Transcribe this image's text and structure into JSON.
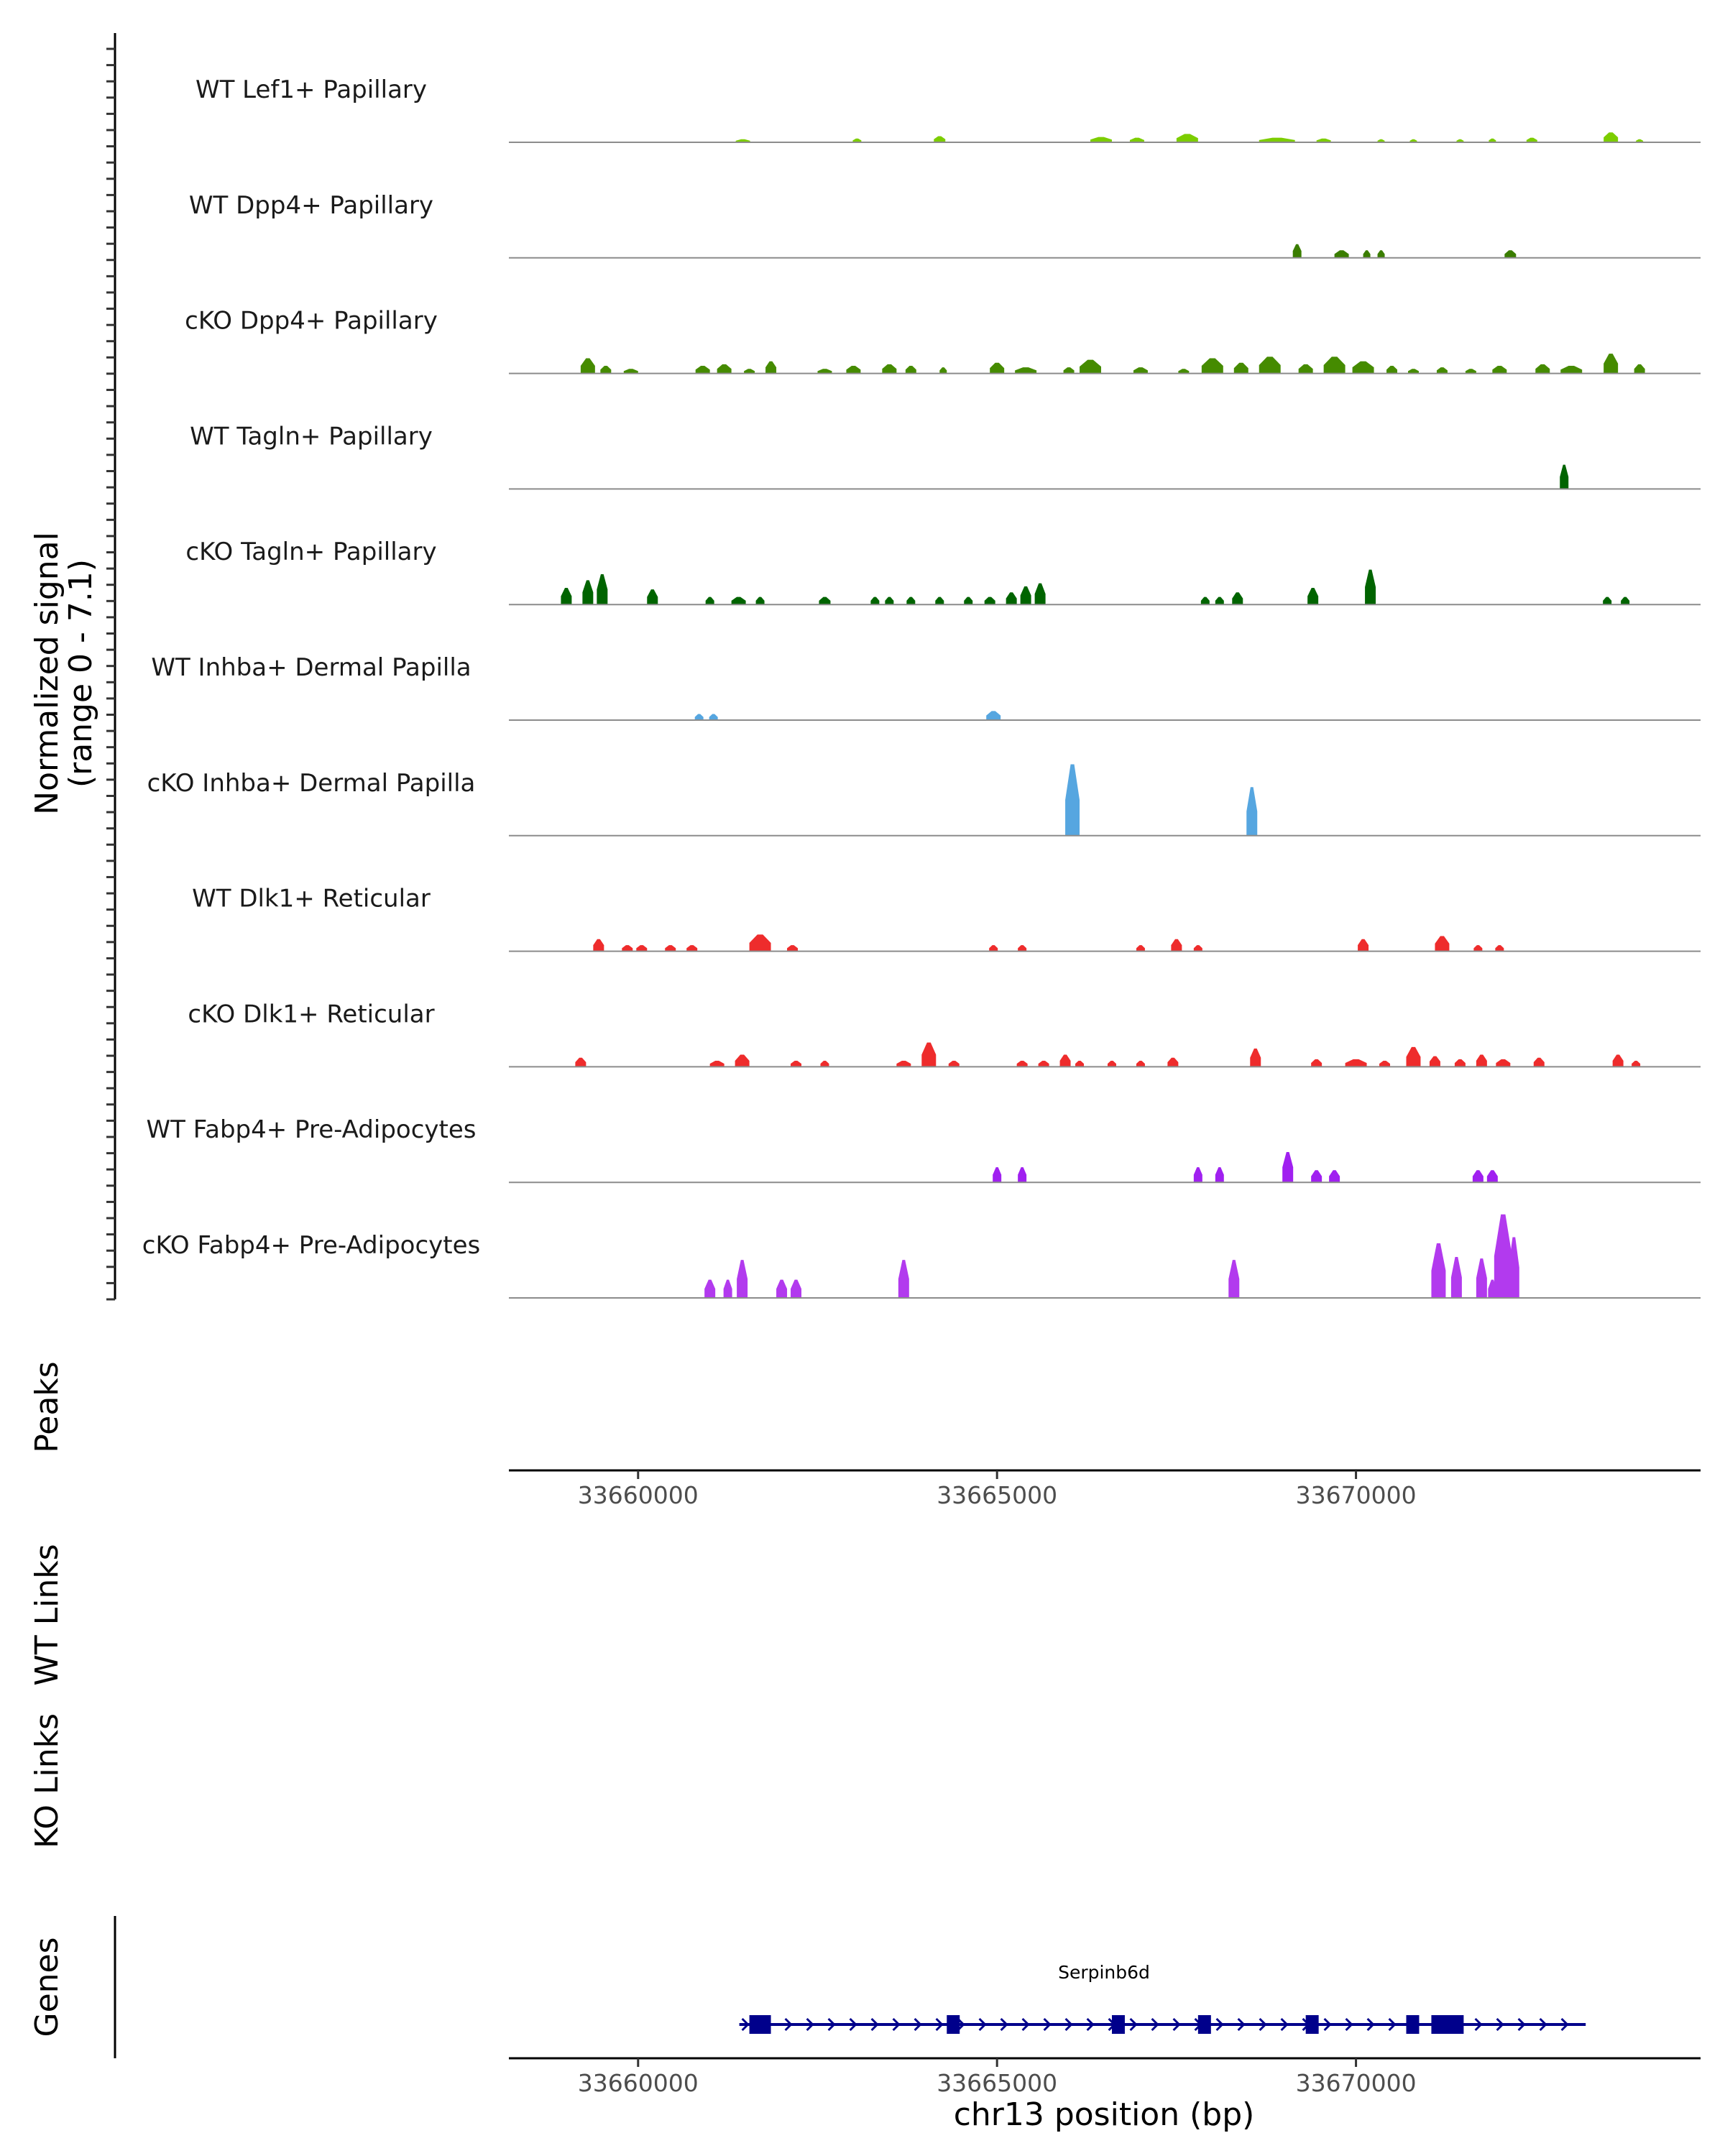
{
  "chart_data": {
    "type": "area",
    "title": "",
    "y_axis_label": "Normalized signal",
    "y_axis_range_label": "(range 0 - 7.1)",
    "ylim": [
      0,
      7.1
    ],
    "xlim": [
      33658200,
      33674800
    ],
    "x_ticks": [
      {
        "value": 33660000,
        "label": "33660000"
      },
      {
        "value": 33665000,
        "label": "33665000"
      },
      {
        "value": 33670000,
        "label": "33670000"
      }
    ],
    "xlabel": "chr13 position (bp)",
    "tracks": [
      {
        "name": "WT Lef1+ Papillary",
        "color": "#7CCD00",
        "peaks": [
          [
            33661460,
            0.2,
            200
          ],
          [
            33663050,
            0.25,
            120
          ],
          [
            33664200,
            0.4,
            160
          ],
          [
            33666450,
            0.35,
            300
          ],
          [
            33666950,
            0.3,
            200
          ],
          [
            33667650,
            0.55,
            300
          ],
          [
            33668900,
            0.3,
            500
          ],
          [
            33669550,
            0.25,
            200
          ],
          [
            33670350,
            0.2,
            100
          ],
          [
            33670800,
            0.2,
            100
          ],
          [
            33671450,
            0.2,
            100
          ],
          [
            33671900,
            0.25,
            100
          ],
          [
            33672450,
            0.3,
            150
          ],
          [
            33673550,
            0.65,
            200
          ],
          [
            33673950,
            0.2,
            100
          ]
        ]
      },
      {
        "name": "WT Dpp4+ Papillary",
        "color": "#3A7D00",
        "peaks": [
          [
            33669180,
            0.9,
            120
          ],
          [
            33669800,
            0.5,
            200
          ],
          [
            33670150,
            0.5,
            100
          ],
          [
            33670350,
            0.5,
            100
          ],
          [
            33672150,
            0.5,
            160
          ]
        ]
      },
      {
        "name": "cKO Dpp4+ Papillary",
        "color": "#458B00",
        "peaks": [
          [
            33659300,
            1.0,
            200
          ],
          [
            33659550,
            0.5,
            150
          ],
          [
            33659900,
            0.3,
            200
          ],
          [
            33660900,
            0.5,
            200
          ],
          [
            33661200,
            0.6,
            200
          ],
          [
            33661550,
            0.3,
            150
          ],
          [
            33661850,
            0.8,
            150
          ],
          [
            33662600,
            0.3,
            200
          ],
          [
            33663000,
            0.5,
            200
          ],
          [
            33663500,
            0.6,
            200
          ],
          [
            33663800,
            0.5,
            150
          ],
          [
            33664250,
            0.4,
            100
          ],
          [
            33665000,
            0.7,
            200
          ],
          [
            33665400,
            0.4,
            300
          ],
          [
            33666000,
            0.4,
            150
          ],
          [
            33666300,
            0.9,
            300
          ],
          [
            33667000,
            0.4,
            200
          ],
          [
            33667600,
            0.3,
            150
          ],
          [
            33668000,
            1.0,
            300
          ],
          [
            33668400,
            0.7,
            200
          ],
          [
            33668800,
            1.1,
            300
          ],
          [
            33669300,
            0.6,
            200
          ],
          [
            33669700,
            1.1,
            300
          ],
          [
            33670100,
            0.8,
            300
          ],
          [
            33670500,
            0.5,
            150
          ],
          [
            33670800,
            0.3,
            150
          ],
          [
            33671200,
            0.4,
            150
          ],
          [
            33671600,
            0.3,
            150
          ],
          [
            33672000,
            0.5,
            200
          ],
          [
            33672600,
            0.6,
            200
          ],
          [
            33673000,
            0.5,
            300
          ],
          [
            33673550,
            1.3,
            200
          ],
          [
            33673950,
            0.6,
            150
          ]
        ]
      },
      {
        "name": "WT Tagln+ Papillary",
        "color": "#006400",
        "peaks": [
          [
            33672900,
            1.6,
            120
          ]
        ]
      },
      {
        "name": "cKO Tagln+ Papillary",
        "color": "#006400",
        "peaks": [
          [
            33659000,
            1.1,
            150
          ],
          [
            33659300,
            1.6,
            150
          ],
          [
            33659500,
            2.0,
            150
          ],
          [
            33660200,
            1.0,
            150
          ],
          [
            33661000,
            0.5,
            120
          ],
          [
            33661400,
            0.5,
            200
          ],
          [
            33661700,
            0.5,
            120
          ],
          [
            33662600,
            0.5,
            160
          ],
          [
            33663300,
            0.5,
            120
          ],
          [
            33663500,
            0.5,
            120
          ],
          [
            33663800,
            0.5,
            120
          ],
          [
            33664200,
            0.5,
            120
          ],
          [
            33664600,
            0.5,
            120
          ],
          [
            33664900,
            0.5,
            150
          ],
          [
            33665200,
            0.8,
            150
          ],
          [
            33665400,
            1.2,
            150
          ],
          [
            33665600,
            1.4,
            150
          ],
          [
            33667900,
            0.5,
            120
          ],
          [
            33668100,
            0.5,
            120
          ],
          [
            33668350,
            0.8,
            150
          ],
          [
            33669400,
            1.1,
            150
          ],
          [
            33670200,
            2.3,
            150
          ],
          [
            33673500,
            0.5,
            120
          ],
          [
            33673750,
            0.5,
            120
          ]
        ]
      },
      {
        "name": "WT Inhba+ Dermal Papilla",
        "color": "#56A6E0",
        "peaks": [
          [
            33660850,
            0.4,
            120
          ],
          [
            33661050,
            0.4,
            120
          ],
          [
            33664950,
            0.6,
            200
          ]
        ]
      },
      {
        "name": "cKO Inhba+ Dermal Papilla",
        "color": "#56A6E0",
        "peaks": [
          [
            33666050,
            4.7,
            200
          ],
          [
            33668550,
            3.2,
            150
          ]
        ]
      },
      {
        "name": "WT Dlk1+ Reticular",
        "color": "#EE2C2C",
        "peaks": [
          [
            33659450,
            0.8,
            150
          ],
          [
            33659850,
            0.4,
            150
          ],
          [
            33660050,
            0.4,
            150
          ],
          [
            33660450,
            0.4,
            150
          ],
          [
            33660750,
            0.4,
            150
          ],
          [
            33661700,
            1.1,
            300
          ],
          [
            33662150,
            0.4,
            150
          ],
          [
            33664950,
            0.4,
            120
          ],
          [
            33665350,
            0.4,
            120
          ],
          [
            33667000,
            0.4,
            120
          ],
          [
            33667500,
            0.8,
            150
          ],
          [
            33667800,
            0.4,
            120
          ],
          [
            33670100,
            0.8,
            150
          ],
          [
            33671200,
            1.0,
            200
          ],
          [
            33671700,
            0.4,
            120
          ],
          [
            33672000,
            0.4,
            120
          ]
        ]
      },
      {
        "name": "cKO Dlk1+ Reticular",
        "color": "#EE2C2C",
        "peaks": [
          [
            33659200,
            0.6,
            150
          ],
          [
            33661100,
            0.4,
            200
          ],
          [
            33661450,
            0.8,
            200
          ],
          [
            33662200,
            0.4,
            150
          ],
          [
            33662600,
            0.4,
            120
          ],
          [
            33663700,
            0.4,
            200
          ],
          [
            33664050,
            1.6,
            200
          ],
          [
            33664400,
            0.4,
            150
          ],
          [
            33665350,
            0.4,
            150
          ],
          [
            33665650,
            0.4,
            150
          ],
          [
            33665950,
            0.8,
            150
          ],
          [
            33666150,
            0.4,
            120
          ],
          [
            33666600,
            0.4,
            120
          ],
          [
            33667000,
            0.4,
            120
          ],
          [
            33667450,
            0.6,
            150
          ],
          [
            33668600,
            1.2,
            150
          ],
          [
            33669450,
            0.5,
            150
          ],
          [
            33670000,
            0.5,
            300
          ],
          [
            33670400,
            0.4,
            150
          ],
          [
            33670800,
            1.3,
            200
          ],
          [
            33671100,
            0.7,
            150
          ],
          [
            33671450,
            0.5,
            150
          ],
          [
            33671750,
            0.8,
            150
          ],
          [
            33672050,
            0.5,
            200
          ],
          [
            33672550,
            0.6,
            150
          ],
          [
            33673650,
            0.8,
            150
          ],
          [
            33673900,
            0.4,
            120
          ]
        ]
      },
      {
        "name": "WT Fabp4+ Pre-Adipocytes",
        "color": "#A020F0",
        "peaks": [
          [
            33665000,
            1.0,
            120
          ],
          [
            33665350,
            1.0,
            120
          ],
          [
            33667800,
            1.0,
            120
          ],
          [
            33668100,
            1.0,
            120
          ],
          [
            33669050,
            2.0,
            150
          ],
          [
            33669450,
            0.8,
            150
          ],
          [
            33669700,
            0.8,
            150
          ],
          [
            33671700,
            0.8,
            150
          ],
          [
            33671900,
            0.8,
            150
          ]
        ]
      },
      {
        "name": "cKO Fabp4+ Pre-Adipocytes",
        "color": "#B23AEE",
        "peaks": [
          [
            33661000,
            1.2,
            150
          ],
          [
            33661250,
            1.2,
            120
          ],
          [
            33661450,
            2.5,
            150
          ],
          [
            33662000,
            1.2,
            150
          ],
          [
            33662200,
            1.2,
            150
          ],
          [
            33663700,
            2.5,
            150
          ],
          [
            33668300,
            2.5,
            150
          ],
          [
            33671150,
            3.6,
            200
          ],
          [
            33671400,
            2.7,
            150
          ],
          [
            33671750,
            2.6,
            150
          ],
          [
            33671900,
            1.2,
            120
          ],
          [
            33672050,
            5.5,
            250
          ],
          [
            33672200,
            4.0,
            150
          ]
        ]
      }
    ],
    "empty_tracks": [
      "Peaks",
      "WT Links",
      "KO Links"
    ],
    "gene_track": {
      "label": "Genes",
      "gene_name": "Serpinb6d",
      "gene_color": "#00008B",
      "start": 33661550,
      "end": 33673200,
      "strand": "+",
      "exons": [
        [
          33661550,
          33661850
        ],
        [
          33664300,
          33664480
        ],
        [
          33666600,
          33666780
        ],
        [
          33667800,
          33667980
        ],
        [
          33669300,
          33669480
        ],
        [
          33670700,
          33670880
        ],
        [
          33671050,
          33671500
        ]
      ]
    }
  }
}
